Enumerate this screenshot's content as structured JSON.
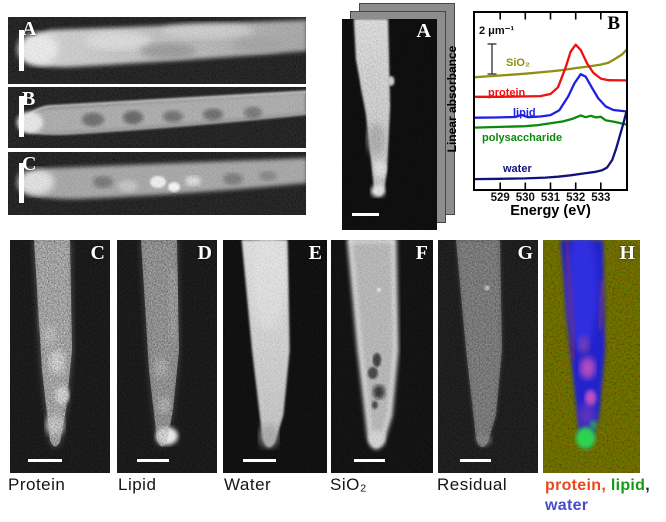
{
  "figure": {
    "background": "#ffffff",
    "micro_panels_left": [
      {
        "letter": "A"
      },
      {
        "letter": "B"
      },
      {
        "letter": "C"
      }
    ],
    "stack_panel": {
      "letter": "A"
    },
    "bottom_panels": [
      {
        "letter": "C",
        "caption": "Protein"
      },
      {
        "letter": "D",
        "caption": "Lipid"
      },
      {
        "letter": "E",
        "caption": "Water"
      },
      {
        "letter": "F",
        "caption": "SiO₂"
      },
      {
        "letter": "G",
        "caption": "Residual"
      },
      {
        "letter": "H",
        "caption": ""
      }
    ],
    "bottom_caption_h": {
      "line1": [
        {
          "text": "protein",
          "color": "#e8481c"
        },
        {
          "text": ", ",
          "color": "#e8481c"
        },
        {
          "text": "lipid",
          "color": "#169a16"
        },
        {
          "text": ",",
          "color": "#222222"
        }
      ],
      "line2": [
        {
          "text": "water",
          "color": "#4a4ace"
        }
      ]
    }
  },
  "chart_data": {
    "type": "line",
    "panel_label": "B",
    "title": "",
    "xlabel": "Energy (eV)",
    "ylabel": "Linear absorbance",
    "xlim": [
      528.0,
      534.0
    ],
    "xticks": [
      529,
      530,
      531,
      532,
      533
    ],
    "ylim": [
      0,
      1
    ],
    "y_units": "linear absorbance, arbitrary offsets; vertical scale bar = 2 per micrometer",
    "scalebar_label": "2 μm⁻¹",
    "grid": false,
    "legend_position": "inline-labels",
    "series": [
      {
        "name": "SiO₂",
        "key": "sio2",
        "color": "#8f8f10",
        "points": [
          [
            528,
            0.635
          ],
          [
            529,
            0.645
          ],
          [
            530,
            0.655
          ],
          [
            531,
            0.668
          ],
          [
            531.5,
            0.676
          ],
          [
            532,
            0.687
          ],
          [
            532.5,
            0.696
          ],
          [
            533,
            0.707
          ],
          [
            533.3,
            0.717
          ],
          [
            533.6,
            0.742
          ],
          [
            533.85,
            0.765
          ],
          [
            534,
            0.788
          ]
        ]
      },
      {
        "name": "protein",
        "key": "protein",
        "color": "#ee1111",
        "points": [
          [
            528,
            0.524
          ],
          [
            529,
            0.524
          ],
          [
            530,
            0.526
          ],
          [
            530.6,
            0.528
          ],
          [
            531,
            0.54
          ],
          [
            531.3,
            0.578
          ],
          [
            531.6,
            0.69
          ],
          [
            531.8,
            0.78
          ],
          [
            532,
            0.82
          ],
          [
            532.2,
            0.79
          ],
          [
            532.45,
            0.715
          ],
          [
            532.7,
            0.66
          ],
          [
            533,
            0.627
          ],
          [
            533.3,
            0.618
          ],
          [
            534,
            0.617
          ]
        ]
      },
      {
        "name": "lipid",
        "key": "lipid",
        "color": "#2020e0",
        "points": [
          [
            528,
            0.405
          ],
          [
            528.8,
            0.406
          ],
          [
            529.6,
            0.409
          ],
          [
            529.85,
            0.421
          ],
          [
            530.1,
            0.408
          ],
          [
            530.6,
            0.412
          ],
          [
            531,
            0.42
          ],
          [
            531.35,
            0.447
          ],
          [
            531.7,
            0.525
          ],
          [
            531.95,
            0.6
          ],
          [
            532.2,
            0.652
          ],
          [
            532.4,
            0.638
          ],
          [
            532.65,
            0.575
          ],
          [
            532.9,
            0.515
          ],
          [
            533.2,
            0.468
          ],
          [
            533.5,
            0.449
          ],
          [
            534,
            0.441
          ]
        ]
      },
      {
        "name": "polysaccharide",
        "key": "polysaccharide",
        "color": "#0b8a0b",
        "points": [
          [
            528,
            0.349
          ],
          [
            529,
            0.353
          ],
          [
            530,
            0.357
          ],
          [
            530.5,
            0.363
          ],
          [
            531,
            0.374
          ],
          [
            531.5,
            0.384
          ],
          [
            531.9,
            0.4
          ],
          [
            532.2,
            0.418
          ],
          [
            532.4,
            0.408
          ],
          [
            532.6,
            0.416
          ],
          [
            532.8,
            0.407
          ],
          [
            533,
            0.41
          ],
          [
            533.2,
            0.39
          ],
          [
            533.5,
            0.383
          ],
          [
            534,
            0.367
          ]
        ]
      },
      {
        "name": "water",
        "key": "water",
        "color": "#12127c",
        "points": [
          [
            528,
            0.056
          ],
          [
            529,
            0.058
          ],
          [
            530,
            0.06
          ],
          [
            530.8,
            0.065
          ],
          [
            531.3,
            0.07
          ],
          [
            531.8,
            0.078
          ],
          [
            532.3,
            0.088
          ],
          [
            532.8,
            0.098
          ],
          [
            533.05,
            0.106
          ],
          [
            533.25,
            0.122
          ],
          [
            533.45,
            0.165
          ],
          [
            533.6,
            0.225
          ],
          [
            533.75,
            0.3
          ],
          [
            533.9,
            0.375
          ],
          [
            534,
            0.43
          ]
        ]
      }
    ]
  }
}
